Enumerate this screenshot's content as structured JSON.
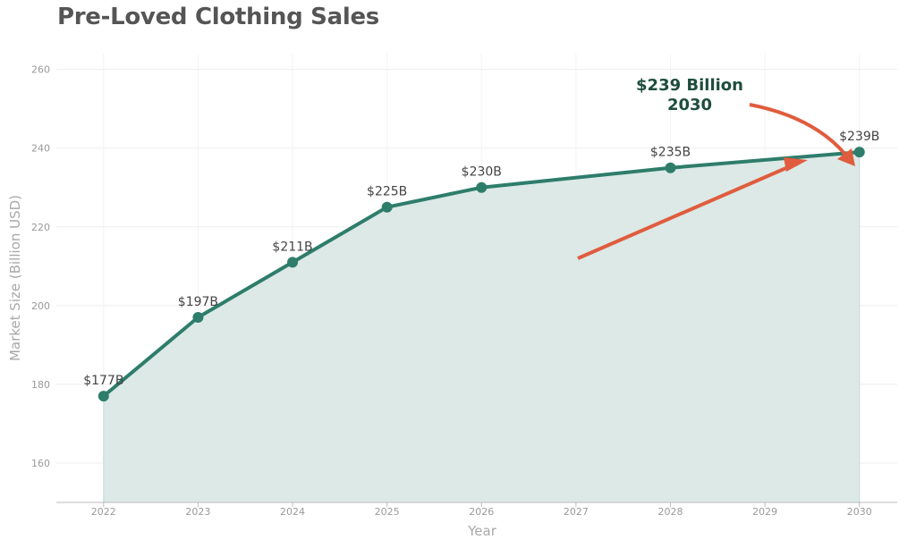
{
  "chart_data": {
    "type": "area",
    "title": "Pre-Loved Clothing Sales",
    "xlabel": "Year",
    "ylabel": "Market Size (Billion USD)",
    "x_ticks": [
      "2022",
      "2023",
      "2024",
      "2025",
      "2026",
      "2027",
      "2028",
      "2029",
      "2030"
    ],
    "y_ticks": [
      160,
      180,
      200,
      220,
      240,
      260
    ],
    "xlim": [
      2021.5,
      2030.4
    ],
    "ylim": [
      150,
      264
    ],
    "grid": true,
    "series": [
      {
        "x": [
          2022,
          2023,
          2024,
          2025,
          2026,
          2028,
          2030
        ],
        "y": [
          177,
          197,
          211,
          225,
          230,
          235,
          239
        ],
        "labels": [
          "$177B",
          "$197B",
          "$211B",
          "$225B",
          "$230B",
          "$235B",
          "$239B"
        ]
      }
    ],
    "annotation": {
      "line1": "$239 Billion",
      "line2": "2030"
    },
    "colors": {
      "line": "#2e7d6b",
      "fill": "#dce9e6",
      "arrow": "#e05c3e",
      "callout": "#1f4d3d"
    }
  }
}
